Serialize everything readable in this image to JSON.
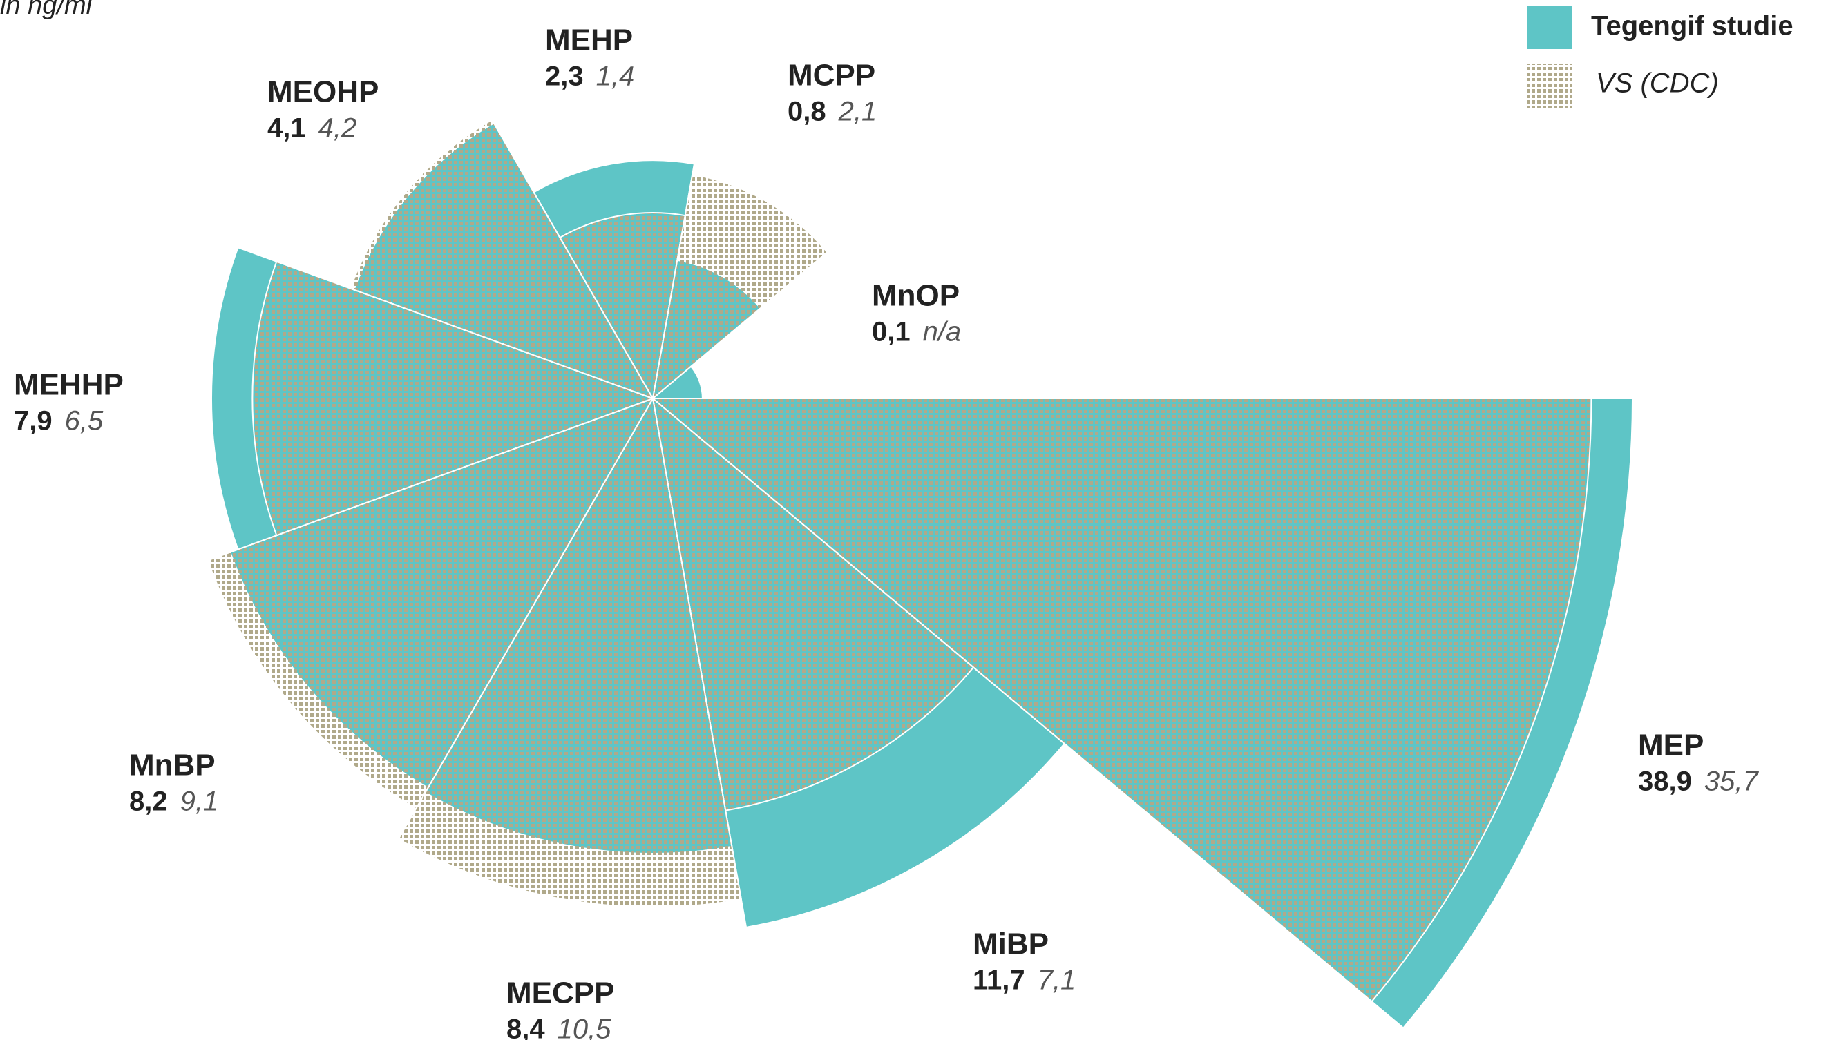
{
  "chart_data": {
    "type": "polar-area",
    "subtitle": "in ng/ml",
    "categories": [
      "MEP",
      "MiBP",
      "MECPP",
      "MnBP",
      "MEHHP",
      "MEOHP",
      "MEHP",
      "MCPP",
      "MnOP"
    ],
    "series": [
      {
        "name": "Tegengif studie",
        "color": "#5ec5c6",
        "values": [
          38.9,
          11.7,
          8.4,
          8.2,
          7.9,
          4.1,
          2.3,
          0.8,
          0.1
        ],
        "value_labels": [
          "38,9",
          "11,7",
          "8,4",
          "8,2",
          "7,9",
          "4,1",
          "2,3",
          "0,8",
          "0,1"
        ]
      },
      {
        "name": "VS (CDC)",
        "color": "#b0a98a",
        "values": [
          35.7,
          7.1,
          10.5,
          9.1,
          6.5,
          4.2,
          1.4,
          2.1,
          null
        ],
        "value_labels": [
          "35,7",
          "7,1",
          "10,5",
          "9,1",
          "6,5",
          "4,2",
          "1,4",
          "2,1",
          "n/a"
        ]
      }
    ],
    "legend": "top-right"
  }
}
